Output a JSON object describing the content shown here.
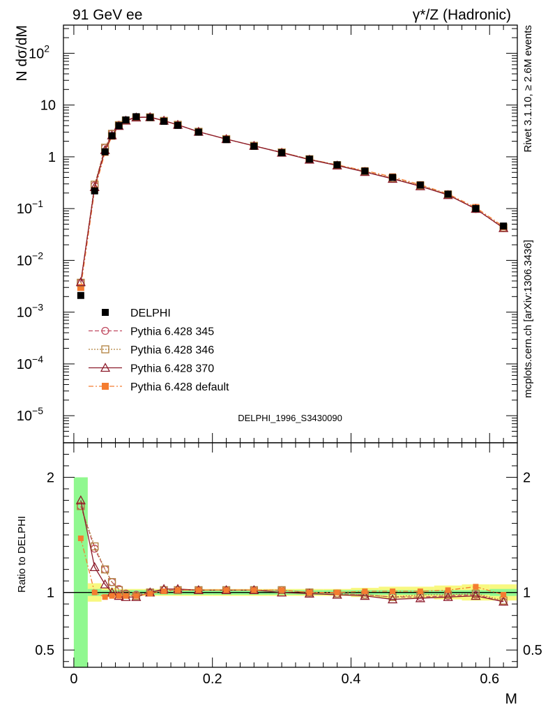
{
  "header": {
    "left_title": "91 GeV ee",
    "right_title": "γ*/Z (Hadronic)"
  },
  "side_texts": {
    "rivet": "Rivet 3.1.10, ≥ 2.6M events",
    "mcplots": "mcplots.cern.ch [arXiv:1306.3436]"
  },
  "analysis_label": "DELPHI_1996_S3430090",
  "colors": {
    "data": "#000000",
    "p345": "#c04a60",
    "p346": "#b0803c",
    "p370": "#8b1a2a",
    "pdefault": "#f47c30",
    "band_green": "#90f890",
    "band_yellow": "#f8f880"
  },
  "chart_data": [
    {
      "type": "line",
      "panel": "main",
      "ylabel": "N dσ/dM",
      "yscale": "log",
      "ylim": [
        3e-06,
        350
      ],
      "xlim": [
        -0.015,
        0.64
      ],
      "y_ticks": [
        {
          "value": 1e-05,
          "base": "10",
          "exp": "−5"
        },
        {
          "value": 0.0001,
          "base": "10",
          "exp": "−4"
        },
        {
          "value": 0.001,
          "base": "10",
          "exp": "−3"
        },
        {
          "value": 0.01,
          "base": "10",
          "exp": "−2"
        },
        {
          "value": 0.1,
          "base": "10",
          "exp": "−1"
        },
        {
          "value": 1,
          "base": "1",
          "exp": ""
        },
        {
          "value": 10,
          "base": "10",
          "exp": ""
        },
        {
          "value": 100,
          "base": "10",
          "exp": "2"
        }
      ],
      "x": [
        0.01,
        0.03,
        0.045,
        0.055,
        0.065,
        0.075,
        0.09,
        0.11,
        0.13,
        0.15,
        0.18,
        0.22,
        0.26,
        0.3,
        0.34,
        0.38,
        0.42,
        0.46,
        0.5,
        0.54,
        0.58,
        0.62
      ],
      "series": [
        {
          "name": "DELPHI",
          "key": "data",
          "marker": "square-filled",
          "values": [
            0.0021,
            0.22,
            1.25,
            2.55,
            4.0,
            5.15,
            5.95,
            5.75,
            4.85,
            4.05,
            3.0,
            2.15,
            1.6,
            1.2,
            0.9,
            0.7,
            0.53,
            0.4,
            0.285,
            0.19,
            0.1,
            0.046
          ]
        },
        {
          "name": "Pythia 6.428 345",
          "key": "p345",
          "marker": "circle-open",
          "dash": "6,3",
          "values": [
            0.0037,
            0.28,
            1.5,
            2.8,
            4.15,
            5.1,
            5.85,
            5.85,
            4.95,
            4.15,
            3.05,
            2.2,
            1.63,
            1.22,
            0.9,
            0.69,
            0.52,
            0.385,
            0.275,
            0.185,
            0.098,
            0.042
          ]
        },
        {
          "name": "Pythia 6.428 346",
          "key": "p346",
          "marker": "square-open",
          "dash": "2,2",
          "values": [
            0.0037,
            0.29,
            1.5,
            2.78,
            4.1,
            5.05,
            5.8,
            5.8,
            4.95,
            4.15,
            3.05,
            2.2,
            1.63,
            1.22,
            0.9,
            0.69,
            0.52,
            0.385,
            0.28,
            0.187,
            0.099,
            0.043
          ]
        },
        {
          "name": "Pythia 6.428 370",
          "key": "p370",
          "marker": "triangle-open",
          "dash": "",
          "values": [
            0.0038,
            0.26,
            1.35,
            2.6,
            3.95,
            5.0,
            5.75,
            5.85,
            5.0,
            4.15,
            3.05,
            2.2,
            1.63,
            1.2,
            0.88,
            0.68,
            0.51,
            0.375,
            0.27,
            0.183,
            0.099,
            0.042
          ]
        },
        {
          "name": "Pythia 6.428 default",
          "key": "pdefault",
          "marker": "square-filled",
          "dash": "7,3,2,3",
          "values": [
            0.003,
            0.225,
            1.22,
            2.5,
            3.9,
            5.0,
            5.8,
            5.8,
            4.95,
            4.15,
            3.05,
            2.2,
            1.62,
            1.22,
            0.9,
            0.7,
            0.54,
            0.41,
            0.29,
            0.192,
            0.105,
            0.045
          ]
        }
      ]
    },
    {
      "type": "line",
      "panel": "ratio",
      "ylabel": "Ratio to DELPHI",
      "xlabel": "M",
      "ylim": [
        0.35,
        2.3
      ],
      "xlim": [
        -0.015,
        0.64
      ],
      "y_ticks": [
        {
          "value": 0.5,
          "label": "0.5"
        },
        {
          "value": 1,
          "label": "1"
        },
        {
          "value": 2,
          "label": "2"
        }
      ],
      "x_ticks": [
        {
          "value": 0,
          "label": "0"
        },
        {
          "value": 0.2,
          "label": "0.2"
        },
        {
          "value": 0.4,
          "label": "0.4"
        },
        {
          "value": 0.6,
          "label": "0.6"
        }
      ],
      "bands": {
        "edges": [
          0.0,
          0.02,
          0.04,
          0.05,
          0.06,
          0.07,
          0.08,
          0.1,
          0.12,
          0.14,
          0.16,
          0.2,
          0.24,
          0.28,
          0.32,
          0.36,
          0.4,
          0.44,
          0.48,
          0.52,
          0.56,
          0.6,
          0.64
        ],
        "green": [
          1.0,
          0.03,
          0.02,
          0.02,
          0.02,
          0.02,
          0.02,
          0.02,
          0.02,
          0.02,
          0.02,
          0.02,
          0.02,
          0.02,
          0.02,
          0.02,
          0.02,
          0.02,
          0.02,
          0.02,
          0.02,
          0.03
        ],
        "yellow": [
          1.0,
          0.08,
          0.04,
          0.04,
          0.03,
          0.03,
          0.03,
          0.03,
          0.03,
          0.03,
          0.03,
          0.03,
          0.03,
          0.03,
          0.03,
          0.03,
          0.04,
          0.05,
          0.05,
          0.06,
          0.07,
          0.07
        ]
      },
      "x": [
        0.01,
        0.03,
        0.045,
        0.055,
        0.065,
        0.075,
        0.09,
        0.11,
        0.13,
        0.15,
        0.18,
        0.22,
        0.26,
        0.3,
        0.34,
        0.38,
        0.42,
        0.46,
        0.5,
        0.54,
        0.58,
        0.62
      ],
      "series": [
        {
          "name": "Pythia 6.428 345",
          "key": "p345",
          "marker": "circle-open",
          "dash": "6,3",
          "values": [
            1.75,
            1.38,
            1.2,
            1.09,
            1.03,
            0.99,
            0.98,
            1.0,
            1.02,
            1.02,
            1.02,
            1.02,
            1.02,
            1.02,
            1.0,
            0.99,
            0.98,
            0.96,
            0.96,
            0.97,
            0.98,
            0.92
          ]
        },
        {
          "name": "Pythia 6.428 346",
          "key": "p346",
          "marker": "square-open",
          "dash": "2,2",
          "values": [
            1.75,
            1.4,
            1.2,
            1.09,
            1.02,
            0.98,
            0.97,
            1.0,
            1.02,
            1.02,
            1.02,
            1.02,
            1.02,
            1.02,
            1.0,
            0.99,
            0.98,
            0.96,
            0.98,
            0.98,
            0.99,
            0.93
          ]
        },
        {
          "name": "Pythia 6.428 370",
          "key": "p370",
          "marker": "triangle-open",
          "dash": "",
          "values": [
            1.8,
            1.22,
            1.07,
            1.0,
            0.97,
            0.96,
            0.96,
            1.0,
            1.03,
            1.03,
            1.02,
            1.02,
            1.02,
            1.0,
            0.99,
            0.98,
            0.97,
            0.94,
            0.95,
            0.96,
            0.97,
            0.92
          ]
        },
        {
          "name": "Pythia 6.428 default",
          "key": "pdefault",
          "marker": "square-filled",
          "dash": "7,3,2,3",
          "values": [
            1.47,
            1.0,
            0.96,
            0.97,
            0.97,
            0.97,
            0.97,
            0.99,
            1.01,
            1.02,
            1.02,
            1.02,
            1.02,
            1.02,
            1.0,
            1.0,
            1.01,
            1.01,
            1.01,
            1.02,
            1.05,
            0.98
          ]
        }
      ]
    }
  ]
}
